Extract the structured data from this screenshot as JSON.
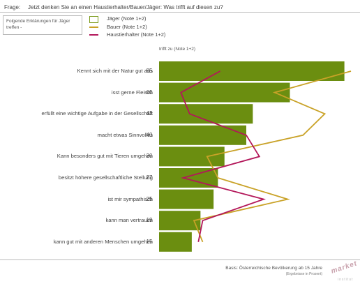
{
  "header": {
    "frage_label": "Frage:",
    "question": "Jetzt denken Sie an einen Haustierhalter/Bauer/Jäger: Was trifft auf diesen zu?"
  },
  "explanation_box": "Folgende Erklärungen für Jäger treffen -",
  "legend": [
    {
      "label": "Jäger (Note 1+2)",
      "kind": "bar",
      "color": "#6b8e10"
    },
    {
      "label": "Bauer (Note 1+2)",
      "kind": "line",
      "color": "#c9a227"
    },
    {
      "label": "Haustierhalter (Note 1+2)",
      "kind": "line",
      "color": "#b3175a"
    }
  ],
  "column_header": "trifft zu (Note 1+2)",
  "chart_data": {
    "type": "bar",
    "orientation": "horizontal",
    "categories": [
      "Kennt sich mit der Natur gut aus",
      "isst gerne Fleisch",
      "erfüllt eine wichtige Aufgabe in der Gesellschaft",
      "macht etwas Sinnvolles",
      "Kann besonders gut mit Tieren umgehen",
      "besitzt höhere gesellschaftliche Stellung",
      "ist mir sympathisch",
      "kann man vertrauen",
      "kann gut mit anderen Menschen umgehen"
    ],
    "series": [
      {
        "name": "Jäger (Note 1+2)",
        "type": "bar",
        "color": "#6b8e10",
        "values": [
          85,
          60,
          43,
          40,
          30,
          27,
          25,
          19,
          15
        ]
      },
      {
        "name": "Bauer (Note 1+2)",
        "type": "line",
        "color": "#c9a227",
        "values": [
          88,
          53,
          76,
          66,
          22,
          27,
          59,
          16,
          20
        ]
      },
      {
        "name": "Haustierhalter (Note 1+2)",
        "type": "line",
        "color": "#b3175a",
        "values": [
          28,
          10,
          14,
          40,
          46,
          11,
          48,
          20,
          18
        ]
      }
    ],
    "xlim": [
      0,
      88
    ],
    "grid": false,
    "legend_position": "top"
  },
  "footer": {
    "basis": "Basis: Österreichische Bevölkerung ab 15 Jahre",
    "basis_sub": "(Ergebnisse in Prozent)",
    "logo_text": "market",
    "logo_sub": "institut"
  }
}
